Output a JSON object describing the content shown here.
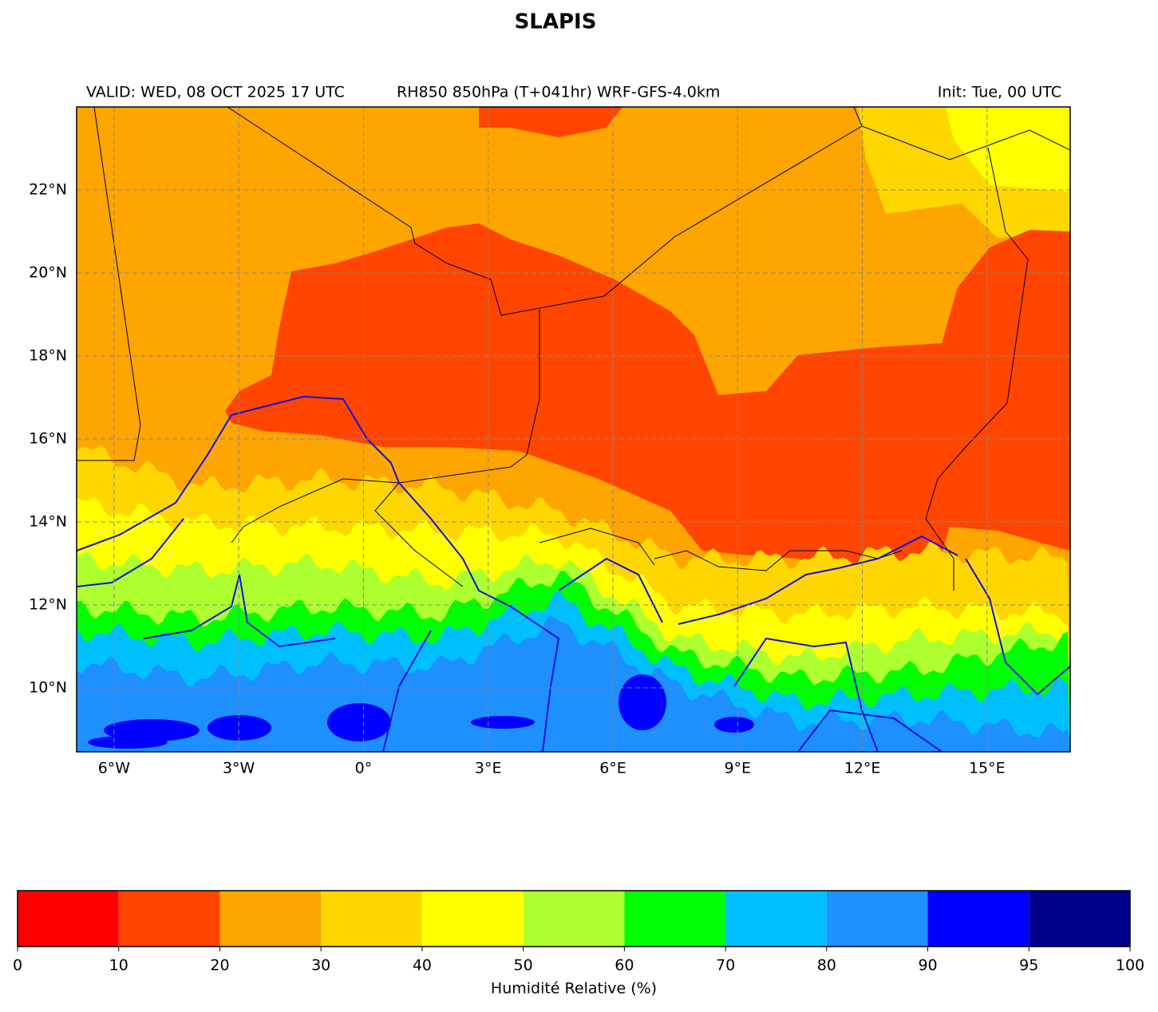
{
  "title": "SLAPIS",
  "header": {
    "valid": "VALID: WED, 08 OCT 2025 17 UTC",
    "product": "RH850 850hPa (T+041hr) WRF-GFS-4.0km",
    "init": "Init: Tue, 00 UTC"
  },
  "map": {
    "xlim": [
      -6.9,
      17.0
    ],
    "ylim": [
      8.46,
      24.0
    ],
    "xticks": [
      {
        "value": -6,
        "label": "6°W"
      },
      {
        "value": -3,
        "label": "3°W"
      },
      {
        "value": 0,
        "label": "0°"
      },
      {
        "value": 3,
        "label": "3°E"
      },
      {
        "value": 6,
        "label": "6°E"
      },
      {
        "value": 9,
        "label": "9°E"
      },
      {
        "value": 12,
        "label": "12°E"
      },
      {
        "value": 15,
        "label": "15°E"
      }
    ],
    "yticks": [
      {
        "value": 10,
        "label": "10°N"
      },
      {
        "value": 12,
        "label": "12°N"
      },
      {
        "value": 14,
        "label": "14°N"
      },
      {
        "value": 16,
        "label": "16°N"
      },
      {
        "value": 18,
        "label": "18°N"
      },
      {
        "value": 20,
        "label": "20°N"
      },
      {
        "value": 22,
        "label": "22°N"
      }
    ],
    "grid": true
  },
  "colorbar": {
    "boundaries": [
      0,
      10,
      20,
      30,
      40,
      50,
      60,
      70,
      80,
      90,
      95,
      100
    ],
    "colors": [
      "#ff0000",
      "#ff4500",
      "#ffa500",
      "#ffd700",
      "#ffff00",
      "#adff2f",
      "#00ff00",
      "#00bfff",
      "#1e90ff",
      "#0000ff",
      "#00008b"
    ],
    "label": "Humidité Relative (%)"
  }
}
